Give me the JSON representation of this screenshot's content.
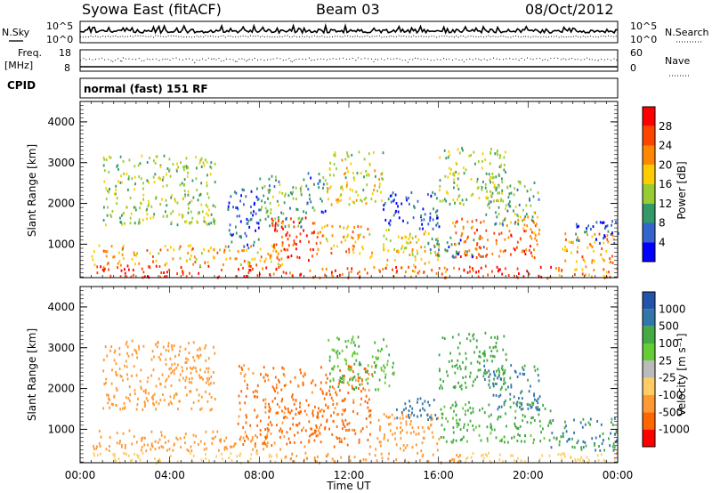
{
  "header": {
    "station": "Syowa East (fitACF)",
    "beam": "Beam 03",
    "date": "08/Oct/2012"
  },
  "status_panels": {
    "nsky_label": "N.Sky",
    "nsky_ticks": [
      "10^5",
      "10^0"
    ],
    "nsearch_label": "N.Search",
    "nsearch_ticks": [
      "10^5",
      "10^0"
    ],
    "freq_label": "Freq.",
    "freq_unit": "[MHz]",
    "freq_ticks": [
      "18",
      "8"
    ],
    "nave_label": "Nave",
    "nave_ticks": [
      "60",
      "0"
    ],
    "cpid_label": "CPID",
    "cpid_value": "normal (fast) 151 RF"
  },
  "chart_data": [
    {
      "type": "heatmap",
      "name": "power",
      "ylabel": "Slant Range [km]",
      "xlabel": "",
      "x_range": [
        0,
        24
      ],
      "ylim": [
        180,
        4500
      ],
      "y_ticks": [
        "4000",
        "3000",
        "2000",
        "1000"
      ],
      "colorbar": {
        "label": "Power [dB]",
        "ticks": [
          "28",
          "24",
          "20",
          "16",
          "12",
          "8",
          "4"
        ],
        "colors": [
          "#ff0000",
          "#ff4400",
          "#ff8800",
          "#ffcc00",
          "#99cc33",
          "#339966",
          "#3366cc",
          "#0000ff"
        ]
      },
      "patches": [
        {
          "x": [
            0.7,
            9.0
          ],
          "y": [
            200,
            500
          ],
          "level": 28
        },
        {
          "x": [
            9.0,
            13.0
          ],
          "y": [
            200,
            450
          ],
          "level": 26
        },
        {
          "x": [
            13.0,
            17.0
          ],
          "y": [
            200,
            500
          ],
          "level": 24
        },
        {
          "x": [
            17.0,
            21.0
          ],
          "y": [
            200,
            500
          ],
          "level": 28
        },
        {
          "x": [
            21.0,
            24.0
          ],
          "y": [
            200,
            480
          ],
          "level": 22
        },
        {
          "x": [
            0.5,
            9.0
          ],
          "y": [
            500,
            1000
          ],
          "level": 20
        },
        {
          "x": [
            8.5,
            10.5
          ],
          "y": [
            600,
            1700
          ],
          "level": 26
        },
        {
          "x": [
            10.5,
            13.0
          ],
          "y": [
            700,
            1500
          ],
          "level": 20
        },
        {
          "x": [
            13.5,
            16.0
          ],
          "y": [
            500,
            1400
          ],
          "level": 18
        },
        {
          "x": [
            16.5,
            20.5
          ],
          "y": [
            700,
            1700
          ],
          "level": 24
        },
        {
          "x": [
            21.5,
            23.8
          ],
          "y": [
            500,
            1300
          ],
          "level": 22
        },
        {
          "x": [
            6.5,
            8.0
          ],
          "y": [
            900,
            2400
          ],
          "level": 6
        },
        {
          "x": [
            8.0,
            10.0
          ],
          "y": [
            1400,
            2700
          ],
          "level": 12
        },
        {
          "x": [
            10.0,
            11.0
          ],
          "y": [
            1800,
            2800
          ],
          "level": 8
        },
        {
          "x": [
            13.5,
            16.0
          ],
          "y": [
            1400,
            2300
          ],
          "level": 6
        },
        {
          "x": [
            15.5,
            18.0
          ],
          "y": [
            700,
            1200
          ],
          "level": 8
        },
        {
          "x": [
            18.0,
            20.5
          ],
          "y": [
            1500,
            2600
          ],
          "level": 12
        },
        {
          "x": [
            22.0,
            24.0
          ],
          "y": [
            1000,
            1600
          ],
          "level": 6
        },
        {
          "x": [
            1.0,
            6.0
          ],
          "y": [
            1500,
            3200
          ],
          "level": 14
        },
        {
          "x": [
            11.0,
            13.5
          ],
          "y": [
            2000,
            3300
          ],
          "level": 16
        },
        {
          "x": [
            16.0,
            19.0
          ],
          "y": [
            2000,
            3400
          ],
          "level": 14
        }
      ]
    },
    {
      "type": "heatmap",
      "name": "velocity",
      "ylabel": "Slant Range [km]",
      "xlabel": "Time UT",
      "x_range": [
        0,
        24
      ],
      "ylim": [
        180,
        4500
      ],
      "x_ticks": [
        "00:00",
        "04:00",
        "08:00",
        "12:00",
        "16:00",
        "20:00",
        "00:00"
      ],
      "y_ticks": [
        "4000",
        "3000",
        "2000",
        "1000"
      ],
      "colorbar": {
        "label": "Velocity [m s⁻¹]",
        "ticks": [
          "1000",
          "500",
          "100",
          "25",
          "-25",
          "-100",
          "-500",
          "-1000"
        ],
        "colors": [
          "#2255aa",
          "#3377aa",
          "#44aa44",
          "#66cc33",
          "#bbbbbb",
          "#ffcc66",
          "#ff9933",
          "#ff6600",
          "#ff0000"
        ]
      },
      "patches": [
        {
          "x": [
            0.5,
            9.0
          ],
          "y": [
            200,
            450
          ],
          "level": -50
        },
        {
          "x": [
            9.0,
            17.0
          ],
          "y": [
            200,
            450
          ],
          "level": -100
        },
        {
          "x": [
            17.0,
            24.0
          ],
          "y": [
            200,
            450
          ],
          "level": -30
        },
        {
          "x": [
            0.5,
            9.0
          ],
          "y": [
            500,
            1000
          ],
          "level": -150
        },
        {
          "x": [
            7.0,
            13.0
          ],
          "y": [
            600,
            2600
          ],
          "level": -400
        },
        {
          "x": [
            13.0,
            16.0
          ],
          "y": [
            500,
            1400
          ],
          "level": -200
        },
        {
          "x": [
            16.0,
            21.0
          ],
          "y": [
            700,
            1700
          ],
          "level": 80
        },
        {
          "x": [
            21.0,
            24.0
          ],
          "y": [
            500,
            1300
          ],
          "level": 300
        },
        {
          "x": [
            18.0,
            20.5
          ],
          "y": [
            1500,
            2600
          ],
          "level": 400
        },
        {
          "x": [
            1.0,
            6.0
          ],
          "y": [
            1500,
            3200
          ],
          "level": -120
        },
        {
          "x": [
            11.0,
            14.0
          ],
          "y": [
            2000,
            3300
          ],
          "level": 60
        },
        {
          "x": [
            16.0,
            19.0
          ],
          "y": [
            2000,
            3400
          ],
          "level": 200
        },
        {
          "x": [
            14.0,
            16.0
          ],
          "y": [
            1200,
            1800
          ],
          "level": 500
        }
      ]
    }
  ]
}
